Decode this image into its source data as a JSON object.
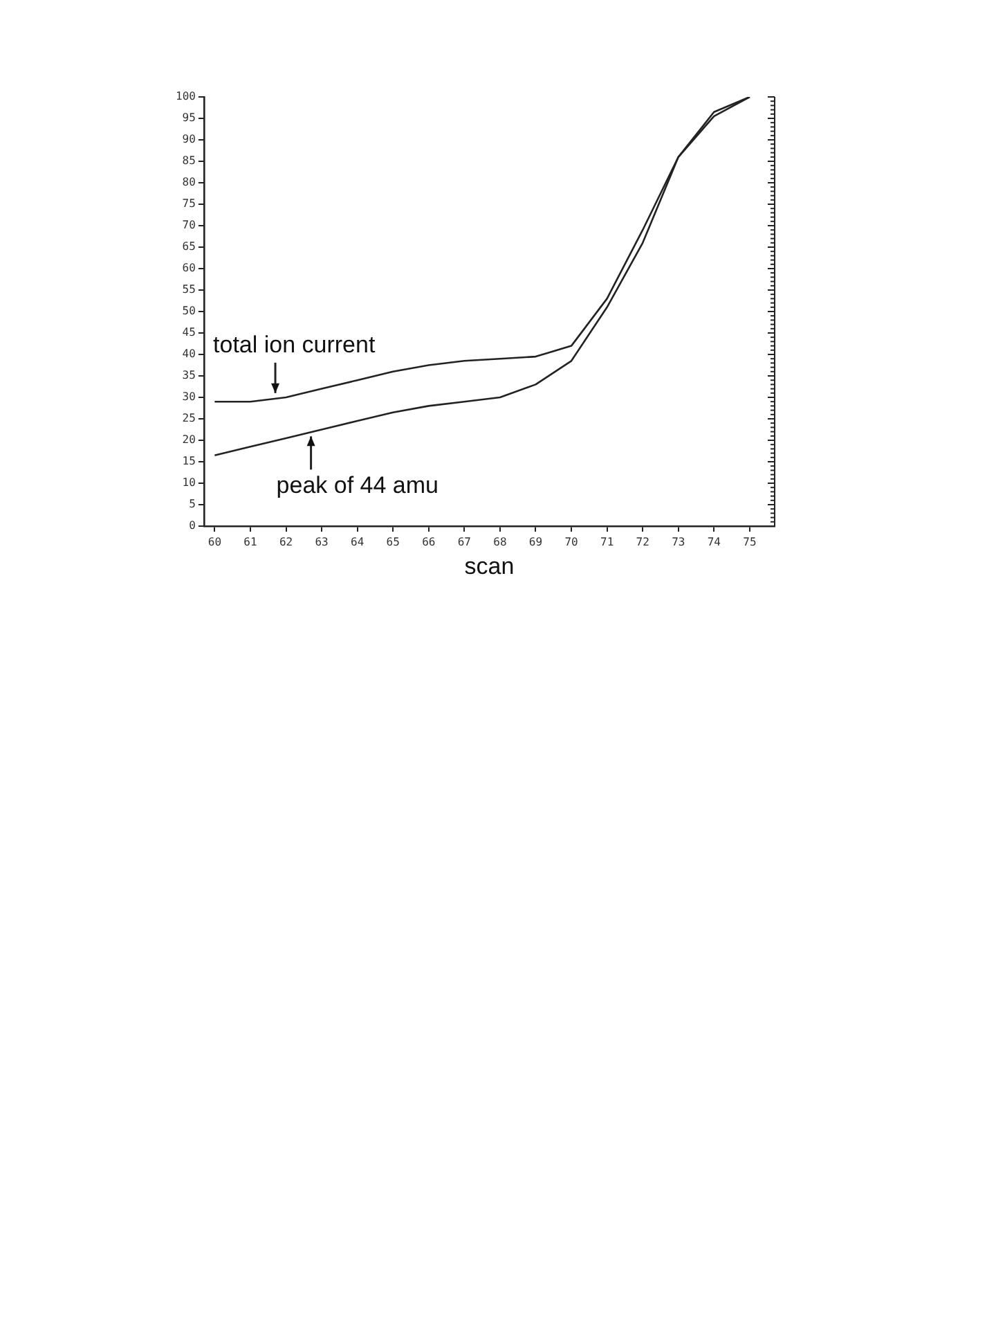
{
  "chart_data": {
    "type": "line",
    "xlabel": "scan",
    "x": [
      60,
      61,
      62,
      63,
      64,
      65,
      66,
      67,
      68,
      69,
      70,
      71,
      72,
      73,
      74,
      75
    ],
    "xlim": [
      59.7,
      75.7
    ],
    "xticks": [
      60,
      61,
      62,
      63,
      64,
      65,
      66,
      67,
      68,
      69,
      70,
      71,
      72,
      73,
      74,
      75
    ],
    "ylim": [
      0,
      100
    ],
    "yticks": [
      0,
      5,
      10,
      15,
      20,
      25,
      30,
      35,
      40,
      45,
      50,
      55,
      60,
      65,
      70,
      75,
      80,
      85,
      90,
      95,
      100
    ],
    "series": [
      {
        "color": "#222222",
        "values": [
          29,
          29,
          30,
          32,
          34,
          36,
          37.5,
          38.5,
          39,
          39.5,
          42,
          53,
          69,
          86,
          95.5,
          100
        ]
      },
      {
        "color": "#222222",
        "values": [
          16.5,
          18.5,
          20.5,
          22.5,
          24.5,
          26.5,
          28,
          29,
          30,
          33,
          38.5,
          51,
          66,
          86,
          96.5,
          100
        ]
      }
    ],
    "annotations": [
      {
        "text": "total ion current",
        "x": 61.7,
        "y": 29.7
      },
      {
        "text": "peak of 44 amu",
        "x": 62.7,
        "y": 22.2
      }
    ],
    "grid": false,
    "legend": false,
    "marker": "none",
    "line_style": "solid"
  }
}
